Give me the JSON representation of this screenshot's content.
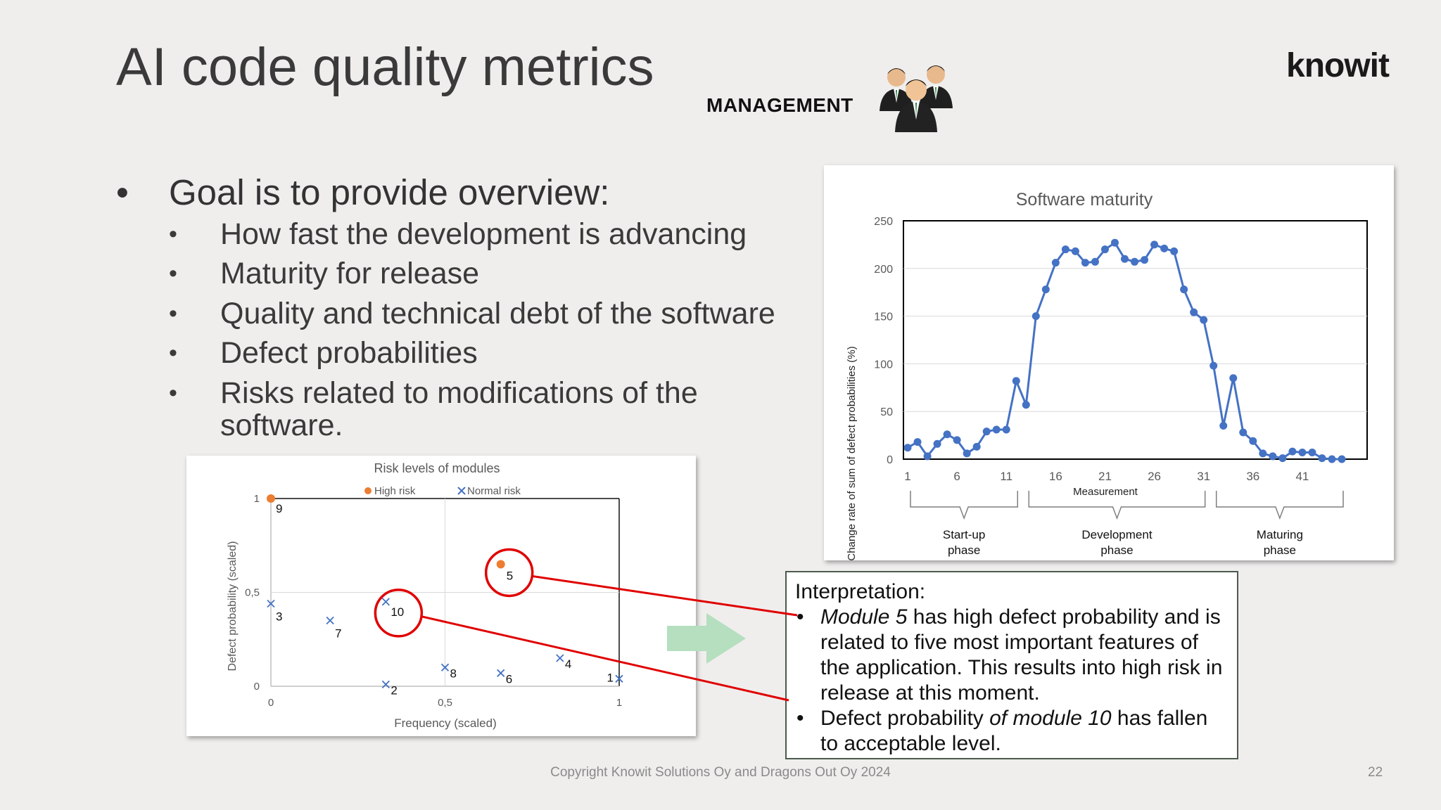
{
  "slide": {
    "title": "AI code quality metrics",
    "role_label": "MANAGEMENT",
    "role_icon": "business-people-icon",
    "logo": "knowit",
    "bullet_char": "•",
    "main_bullet": "Goal is to provide overview:",
    "sub_bullets": [
      "How fast the development is advancing",
      "Maturity for release",
      "Quality and technical debt of the software",
      "Defect probabilities",
      "Risks related to modifications of the",
      "software."
    ],
    "footer": "Copyright Knowit Solutions Oy and Dragons Out Oy 2024",
    "page_number": "22",
    "arrow_icon": "right-arrow-icon",
    "interpretation": {
      "heading": "Interpretation:",
      "item1_lines": [
        {
          "em": "Module 5",
          "rest": " has high defect probability and is"
        },
        {
          "em": "",
          "rest": "related to five most important features of"
        },
        {
          "em": "",
          "rest": "the application. This results into high risk in"
        },
        {
          "em": "",
          "rest": "release at this moment."
        }
      ],
      "item2_lines": [
        {
          "pre": "Defect probability ",
          "em": "of module 10",
          "rest": " has fallen"
        },
        {
          "pre": "to acceptable level.",
          "em": "",
          "rest": ""
        }
      ]
    },
    "colors": {
      "high_risk": "#ed7d31",
      "normal_risk": "#4472c4",
      "line": "#4472c4",
      "callout": "#e00000",
      "arrow": "#b5dfbf"
    }
  },
  "chart_data": [
    {
      "type": "line",
      "title": "Software maturity",
      "xlabel": "Measurement",
      "ylabel": "Change rate of sum of defect probabilities (%)",
      "ylim": [
        0,
        250
      ],
      "yticks": [
        "0",
        "50",
        "100",
        "150",
        "200",
        "250"
      ],
      "xticks": [
        "1",
        "6",
        "11",
        "16",
        "21",
        "26",
        "31",
        "36",
        "41"
      ],
      "grid": true,
      "x": [
        1,
        2,
        3,
        4,
        5,
        6,
        7,
        8,
        9,
        10,
        11,
        12,
        13,
        14,
        15,
        16,
        17,
        18,
        19,
        20,
        21,
        22,
        23,
        24,
        25,
        26,
        27,
        28,
        29,
        30,
        31,
        32,
        33,
        34,
        35,
        36,
        37,
        38,
        39,
        40,
        41,
        42,
        43,
        44,
        45
      ],
      "values": [
        12,
        18,
        3,
        16,
        26,
        20,
        6,
        13,
        29,
        31,
        31,
        82,
        57,
        150,
        178,
        206,
        220,
        218,
        206,
        207,
        220,
        227,
        210,
        207,
        209,
        225,
        221,
        218,
        178,
        154,
        146,
        98,
        35,
        85,
        28,
        19,
        6,
        3,
        1,
        8,
        7,
        7,
        1,
        0,
        0
      ],
      "phases": [
        {
          "line1": "Start-up",
          "line2": "phase"
        },
        {
          "line1": "Development",
          "line2": "phase"
        },
        {
          "line1": "Maturing",
          "line2": "phase"
        }
      ]
    },
    {
      "type": "scatter",
      "title": "Risk levels of modules",
      "xlabel": "Frequency (scaled)",
      "ylabel": "Defect probability (scaled)",
      "xlim": [
        0,
        1
      ],
      "ylim": [
        0,
        1
      ],
      "xticks": [
        "0",
        "0,5",
        "1"
      ],
      "yticks": [
        "0",
        "0,5",
        "1"
      ],
      "legend": "top",
      "series": [
        {
          "name": "High risk",
          "marker": "circle",
          "points": [
            {
              "label": "9",
              "x": 0.0,
              "y": 1.0
            },
            {
              "label": "5",
              "x": 0.66,
              "y": 0.65
            }
          ]
        },
        {
          "name": "Normal risk",
          "marker": "x",
          "points": [
            {
              "label": "3",
              "x": 0.0,
              "y": 0.44
            },
            {
              "label": "7",
              "x": 0.17,
              "y": 0.35
            },
            {
              "label": "10",
              "x": 0.33,
              "y": 0.45
            },
            {
              "label": "2",
              "x": 0.33,
              "y": 0.01
            },
            {
              "label": "8",
              "x": 0.5,
              "y": 0.1
            },
            {
              "label": "6",
              "x": 0.66,
              "y": 0.07
            },
            {
              "label": "4",
              "x": 0.83,
              "y": 0.15
            },
            {
              "label": "1",
              "x": 1.0,
              "y": 0.04
            }
          ]
        }
      ],
      "highlighted": [
        "5",
        "10"
      ]
    }
  ]
}
